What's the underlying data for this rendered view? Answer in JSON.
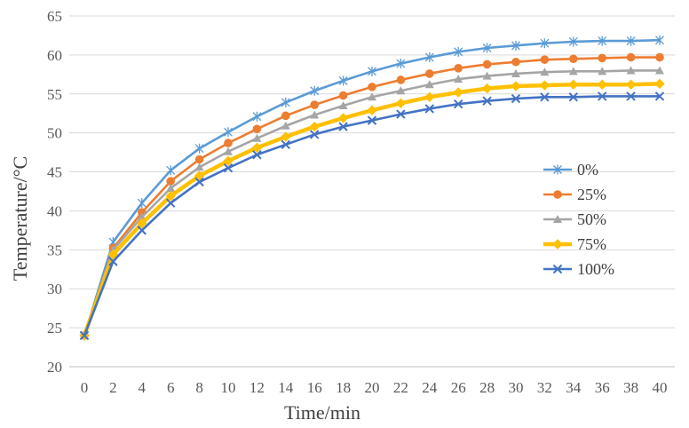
{
  "chart_data": {
    "type": "line",
    "title": "",
    "xlabel": "Time/min",
    "ylabel": "Temperature/°C",
    "xlim": [
      0,
      40
    ],
    "ylim": [
      20,
      65
    ],
    "xticks": [
      0,
      2,
      4,
      6,
      8,
      10,
      12,
      14,
      16,
      18,
      20,
      22,
      24,
      26,
      28,
      30,
      32,
      34,
      36,
      38,
      40
    ],
    "yticks": [
      20,
      25,
      30,
      35,
      40,
      45,
      50,
      55,
      60,
      65
    ],
    "grid": "horizontal",
    "legend_position": "right",
    "x": [
      0,
      2,
      4,
      6,
      8,
      10,
      12,
      14,
      16,
      18,
      20,
      22,
      24,
      26,
      28,
      30,
      32,
      34,
      36,
      38,
      40
    ],
    "series": [
      {
        "name": "0%",
        "color": "#5B9BD5",
        "marker": "star",
        "values": [
          24.0,
          36.0,
          41.0,
          45.2,
          48.0,
          50.1,
          52.1,
          53.9,
          55.4,
          56.7,
          57.9,
          58.9,
          59.7,
          60.4,
          60.9,
          61.2,
          61.5,
          61.7,
          61.8,
          61.8,
          61.9
        ]
      },
      {
        "name": "25%",
        "color": "#ED7D31",
        "marker": "circle",
        "values": [
          24.0,
          35.2,
          39.8,
          43.8,
          46.6,
          48.7,
          50.5,
          52.2,
          53.6,
          54.8,
          55.9,
          56.8,
          57.6,
          58.3,
          58.8,
          59.1,
          59.4,
          59.5,
          59.6,
          59.7,
          59.7
        ]
      },
      {
        "name": "50%",
        "color": "#A5A5A5",
        "marker": "triangle",
        "values": [
          24.0,
          35.0,
          39.2,
          42.9,
          45.6,
          47.6,
          49.3,
          50.9,
          52.3,
          53.5,
          54.6,
          55.4,
          56.2,
          56.9,
          57.3,
          57.6,
          57.8,
          57.9,
          57.9,
          58.0,
          58.0
        ]
      },
      {
        "name": "75%",
        "color": "#FFC000",
        "marker": "diamond",
        "values": [
          24.0,
          34.4,
          38.4,
          41.9,
          44.5,
          46.4,
          48.1,
          49.5,
          50.8,
          51.9,
          52.9,
          53.8,
          54.6,
          55.2,
          55.7,
          56.0,
          56.1,
          56.2,
          56.2,
          56.2,
          56.3
        ]
      },
      {
        "name": "100%",
        "color": "#4472C4",
        "marker": "x",
        "values": [
          24.0,
          33.5,
          37.5,
          41.0,
          43.7,
          45.5,
          47.2,
          48.5,
          49.8,
          50.8,
          51.6,
          52.4,
          53.1,
          53.7,
          54.1,
          54.4,
          54.6,
          54.6,
          54.7,
          54.7,
          54.7
        ]
      }
    ]
  }
}
